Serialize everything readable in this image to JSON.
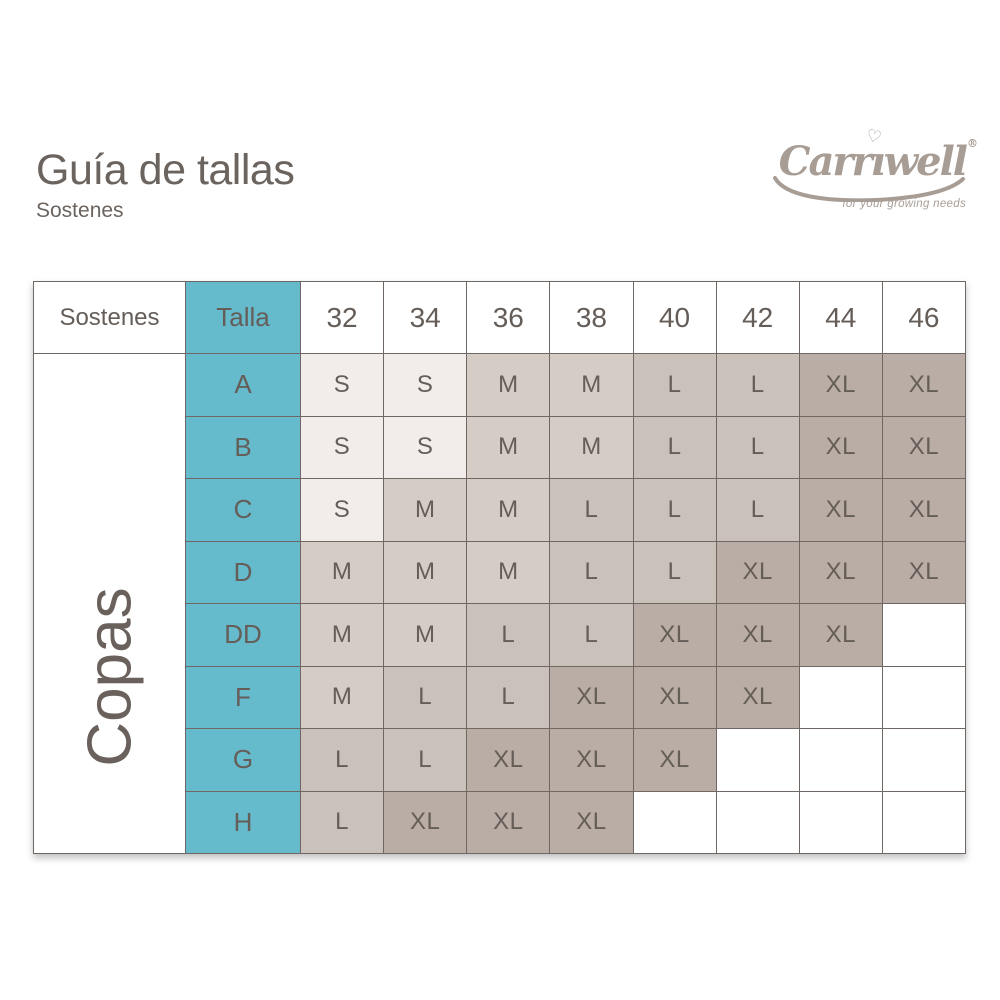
{
  "page": {
    "title": "Guía de tallas",
    "subtitle": "Sostenes"
  },
  "logo": {
    "brand": "Carriwell",
    "brand_render": {
      "pre": "Carr",
      "i": "ı",
      "post": "well"
    },
    "heart_glyph": "♡",
    "registered": "®",
    "tagline": "for your growing needs",
    "color": "#a89d95"
  },
  "table": {
    "corner_label": "Sostenes",
    "talla_label": "Talla",
    "cup_axis_label": "Copas",
    "band_sizes": [
      "32",
      "34",
      "36",
      "38",
      "40",
      "42",
      "44",
      "46"
    ],
    "rows": [
      {
        "cup": "A",
        "sizes": [
          "S",
          "S",
          "M",
          "M",
          "L",
          "L",
          "XL",
          "XL"
        ]
      },
      {
        "cup": "B",
        "sizes": [
          "S",
          "S",
          "M",
          "M",
          "L",
          "L",
          "XL",
          "XL"
        ]
      },
      {
        "cup": "C",
        "sizes": [
          "S",
          "M",
          "M",
          "L",
          "L",
          "L",
          "XL",
          "XL"
        ]
      },
      {
        "cup": "D",
        "sizes": [
          "M",
          "M",
          "M",
          "L",
          "L",
          "XL",
          "XL",
          "XL"
        ]
      },
      {
        "cup": "DD",
        "sizes": [
          "M",
          "M",
          "L",
          "L",
          "XL",
          "XL",
          "XL",
          ""
        ]
      },
      {
        "cup": "F",
        "sizes": [
          "M",
          "L",
          "L",
          "XL",
          "XL",
          "XL",
          "",
          ""
        ]
      },
      {
        "cup": "G",
        "sizes": [
          "L",
          "L",
          "XL",
          "XL",
          "XL",
          "",
          "",
          ""
        ]
      },
      {
        "cup": "H",
        "sizes": [
          "L",
          "XL",
          "XL",
          "XL",
          "",
          "",
          "",
          ""
        ]
      }
    ],
    "colors": {
      "teal": "#65bacb",
      "S": "#f2edea",
      "M": "#d6ccc6",
      "L": "#cbc1bb",
      "XL": "#b9ada5",
      "empty": "#ffffff",
      "border": "#6f6763",
      "text": "#655d58"
    }
  }
}
